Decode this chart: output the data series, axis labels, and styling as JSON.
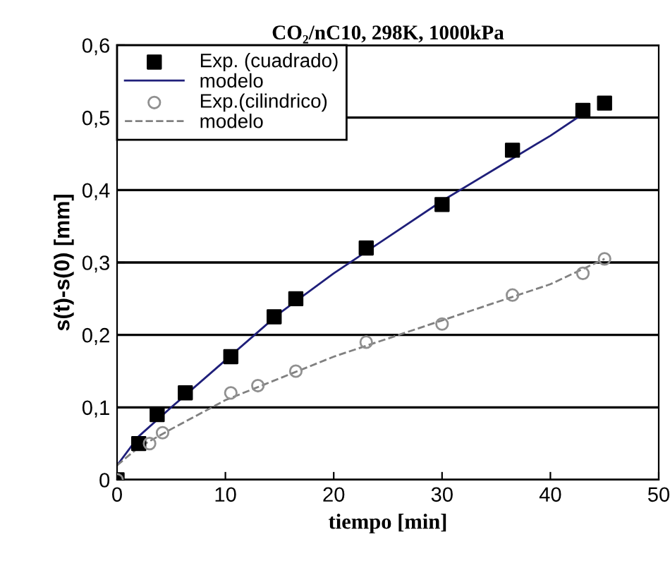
{
  "chart_data": {
    "type": "scatter",
    "title": "CO₂/nC10, 298K, 1000kPa",
    "xlabel": "tiempo [min]",
    "ylabel": "s(t)-s(0) [mm]",
    "xlim": [
      0,
      50
    ],
    "xticks": [
      0,
      10,
      20,
      30,
      40,
      50
    ],
    "ylim": [
      0,
      0.6
    ],
    "yticks": [
      0,
      {
        "value": 0.1,
        "label": "0,1"
      },
      {
        "value": 0.2,
        "label": "0,2"
      },
      {
        "value": 0.3,
        "label": "0,3"
      },
      {
        "value": 0.4,
        "label": "0,4"
      },
      {
        "value": 0.5,
        "label": "0,5"
      },
      {
        "value": 0.6,
        "label": "0,6"
      }
    ],
    "grid": "y",
    "legend": "top left",
    "series": [
      {
        "name": "Exp. (cuadrado)",
        "marker": "square",
        "color": "#000000",
        "x": [
          0,
          2,
          3.7,
          6.3,
          10.5,
          14.5,
          16.5,
          23,
          30,
          36.5,
          43,
          45
        ],
        "values": [
          0,
          0.05,
          0.09,
          0.12,
          0.17,
          0.225,
          0.25,
          0.32,
          0.38,
          0.455,
          0.51,
          0.52
        ]
      },
      {
        "name": "modelo",
        "type": "line",
        "line_style": "solid",
        "color": "#1f1f7a",
        "x": [
          0,
          2,
          5,
          10,
          15,
          20,
          25,
          30,
          35,
          40,
          43
        ],
        "values": [
          0.02,
          0.06,
          0.1,
          0.165,
          0.23,
          0.285,
          0.335,
          0.385,
          0.43,
          0.475,
          0.505
        ]
      },
      {
        "name": "Exp.(cilindrico)",
        "marker": "circle",
        "color": "#909090",
        "x": [
          0,
          3,
          4.2,
          10.5,
          13,
          16.5,
          23,
          30,
          36.5,
          43,
          45
        ],
        "values": [
          0,
          0.05,
          0.065,
          0.12,
          0.13,
          0.15,
          0.19,
          0.215,
          0.255,
          0.285,
          0.305
        ]
      },
      {
        "name": "modelo",
        "type": "line",
        "line_style": "dashed",
        "color": "#808080",
        "x": [
          0,
          2,
          5,
          10,
          15,
          20,
          25,
          30,
          35,
          40,
          45
        ],
        "values": [
          0.02,
          0.045,
          0.07,
          0.11,
          0.14,
          0.17,
          0.195,
          0.22,
          0.245,
          0.27,
          0.305
        ]
      }
    ]
  }
}
